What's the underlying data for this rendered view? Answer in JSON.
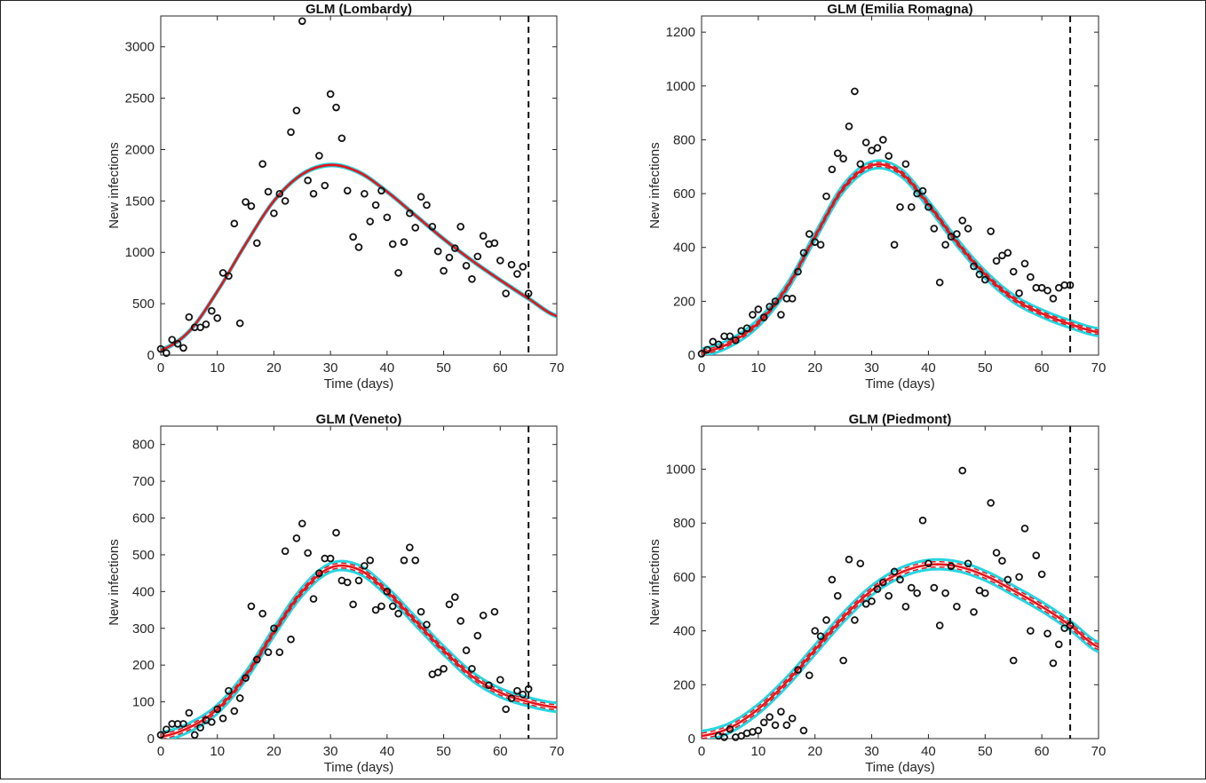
{
  "colors": {
    "fit": "#e8131b",
    "band": "#24d6e0",
    "points": "#111111",
    "cutoff": "#111111"
  },
  "chart_data": [
    {
      "type": "scatter",
      "title": "GLM (Lombardy)",
      "xlabel": "Time (days)",
      "ylabel": "New infections",
      "xlim": [
        0,
        70
      ],
      "ylim": [
        0,
        3300
      ],
      "xticks": [
        0,
        10,
        20,
        30,
        40,
        50,
        60,
        70
      ],
      "yticks": [
        0,
        500,
        1000,
        1500,
        2000,
        2500,
        3000
      ],
      "cutoff_x": 65,
      "fit": {
        "x": [
          0,
          5,
          10,
          15,
          20,
          25,
          30,
          35,
          40,
          45,
          50,
          55,
          60,
          65,
          70
        ],
        "y": [
          50,
          230,
          620,
          1080,
          1500,
          1760,
          1850,
          1780,
          1590,
          1360,
          1130,
          920,
          730,
          550,
          380
        ]
      },
      "band_halfwidth": 10,
      "observed": {
        "x": [
          0,
          1,
          2,
          3,
          4,
          5,
          6,
          7,
          8,
          9,
          10,
          11,
          12,
          13,
          14,
          15,
          16,
          17,
          18,
          19,
          20,
          21,
          22,
          23,
          24,
          25,
          26,
          27,
          28,
          29,
          30,
          31,
          32,
          33,
          34,
          35,
          36,
          37,
          38,
          39,
          40,
          41,
          42,
          43,
          44,
          45,
          46,
          47,
          48,
          49,
          50,
          51,
          52,
          53,
          54,
          55,
          56,
          57,
          58,
          59,
          60,
          61,
          62,
          63,
          64,
          65
        ],
        "y": [
          60,
          20,
          150,
          110,
          70,
          370,
          270,
          270,
          300,
          430,
          360,
          800,
          770,
          1280,
          310,
          1490,
          1450,
          1090,
          1860,
          1590,
          1380,
          1570,
          1500,
          2170,
          2380,
          3250,
          1700,
          1570,
          1940,
          1650,
          2540,
          2410,
          2110,
          1600,
          1150,
          1050,
          1570,
          1300,
          1460,
          1600,
          1340,
          1080,
          800,
          1100,
          1380,
          1240,
          1540,
          1460,
          1250,
          1010,
          820,
          950,
          1040,
          1250,
          870,
          740,
          960,
          1160,
          1080,
          1090,
          920,
          600,
          880,
          790,
          860,
          600
        ]
      }
    },
    {
      "type": "scatter",
      "title": "GLM (Emilia Romagna)",
      "xlabel": "Time (days)",
      "ylabel": "New infections",
      "xlim": [
        0,
        70
      ],
      "ylim": [
        0,
        1260
      ],
      "xticks": [
        0,
        10,
        20,
        30,
        40,
        50,
        60,
        70
      ],
      "yticks": [
        0,
        200,
        400,
        600,
        800,
        1000,
        1200
      ],
      "cutoff_x": 65,
      "fit": {
        "x": [
          0,
          5,
          10,
          15,
          20,
          25,
          30,
          35,
          40,
          45,
          50,
          55,
          60,
          65,
          70
        ],
        "y": [
          10,
          45,
          120,
          250,
          440,
          620,
          705,
          680,
          560,
          420,
          300,
          210,
          155,
          115,
          85
        ]
      },
      "band_halfwidth": 14,
      "observed": {
        "x": [
          0,
          1,
          2,
          3,
          4,
          5,
          6,
          7,
          8,
          9,
          10,
          11,
          12,
          13,
          14,
          15,
          16,
          17,
          18,
          19,
          20,
          21,
          22,
          23,
          24,
          25,
          26,
          27,
          28,
          29,
          30,
          31,
          32,
          33,
          34,
          35,
          36,
          37,
          38,
          39,
          40,
          41,
          42,
          43,
          44,
          45,
          46,
          47,
          48,
          49,
          50,
          51,
          52,
          53,
          54,
          55,
          56,
          57,
          58,
          59,
          60,
          61,
          62,
          63,
          64,
          65
        ],
        "y": [
          5,
          20,
          50,
          40,
          70,
          70,
          55,
          90,
          100,
          150,
          170,
          140,
          180,
          200,
          150,
          210,
          210,
          310,
          380,
          450,
          420,
          410,
          590,
          690,
          750,
          730,
          850,
          980,
          710,
          790,
          760,
          770,
          800,
          740,
          410,
          550,
          710,
          550,
          600,
          610,
          550,
          470,
          270,
          410,
          440,
          450,
          500,
          470,
          330,
          300,
          280,
          460,
          350,
          370,
          380,
          310,
          230,
          340,
          290,
          250,
          250,
          240,
          210,
          250,
          260,
          260
        ]
      }
    },
    {
      "type": "scatter",
      "title": "GLM (Veneto)",
      "xlabel": "Time (days)",
      "ylabel": "New infections",
      "xlim": [
        0,
        70
      ],
      "ylim": [
        0,
        850
      ],
      "xticks": [
        0,
        10,
        20,
        30,
        40,
        50,
        60,
        70
      ],
      "yticks": [
        0,
        100,
        200,
        300,
        400,
        500,
        600,
        700,
        800
      ],
      "cutoff_x": 65,
      "fit": {
        "x": [
          0,
          5,
          10,
          15,
          20,
          25,
          30,
          35,
          40,
          45,
          50,
          55,
          60,
          65,
          70
        ],
        "y": [
          5,
          30,
          80,
          170,
          290,
          400,
          465,
          460,
          400,
          320,
          240,
          170,
          125,
          100,
          85
        ]
      },
      "band_halfwidth": 12,
      "observed": {
        "x": [
          0,
          1,
          2,
          3,
          4,
          5,
          6,
          7,
          8,
          9,
          10,
          11,
          12,
          13,
          14,
          15,
          16,
          17,
          18,
          19,
          20,
          21,
          22,
          23,
          24,
          25,
          26,
          27,
          28,
          29,
          30,
          31,
          32,
          33,
          34,
          35,
          36,
          37,
          38,
          39,
          40,
          41,
          42,
          43,
          44,
          45,
          46,
          47,
          48,
          49,
          50,
          51,
          52,
          53,
          54,
          55,
          56,
          57,
          58,
          59,
          60,
          61,
          62,
          63,
          64,
          65
        ],
        "y": [
          10,
          25,
          40,
          40,
          40,
          70,
          10,
          30,
          50,
          45,
          80,
          55,
          130,
          75,
          110,
          165,
          360,
          215,
          340,
          235,
          300,
          235,
          510,
          270,
          545,
          585,
          505,
          380,
          450,
          490,
          490,
          560,
          430,
          425,
          365,
          430,
          470,
          485,
          350,
          360,
          400,
          360,
          340,
          485,
          520,
          485,
          345,
          310,
          175,
          180,
          190,
          365,
          385,
          320,
          240,
          190,
          280,
          335,
          145,
          345,
          160,
          80,
          110,
          130,
          120,
          135
        ]
      }
    },
    {
      "type": "scatter",
      "title": "GLM (Piedmont)",
      "xlabel": "Time (days)",
      "ylabel": "New infections",
      "xlim": [
        0,
        70
      ],
      "ylim": [
        0,
        1160
      ],
      "xticks": [
        0,
        10,
        20,
        30,
        40,
        50,
        60,
        70
      ],
      "yticks": [
        0,
        200,
        400,
        600,
        800,
        1000
      ],
      "cutoff_x": 65,
      "fit": {
        "x": [
          0,
          5,
          10,
          15,
          20,
          25,
          30,
          35,
          40,
          45,
          50,
          55,
          60,
          65,
          70
        ],
        "y": [
          10,
          40,
          110,
          210,
          330,
          450,
          550,
          615,
          645,
          640,
          605,
          550,
          490,
          420,
          340
        ]
      },
      "band_halfwidth": 18,
      "observed": {
        "x": [
          3,
          4,
          5,
          6,
          7,
          8,
          9,
          10,
          11,
          12,
          13,
          14,
          15,
          16,
          17,
          18,
          19,
          20,
          21,
          22,
          23,
          24,
          25,
          26,
          27,
          28,
          29,
          30,
          31,
          32,
          33,
          34,
          35,
          36,
          37,
          38,
          39,
          40,
          41,
          42,
          43,
          44,
          45,
          46,
          47,
          48,
          49,
          50,
          51,
          52,
          53,
          54,
          55,
          56,
          57,
          58,
          59,
          60,
          61,
          62,
          63,
          64,
          65
        ],
        "y": [
          10,
          5,
          35,
          5,
          10,
          20,
          25,
          30,
          60,
          80,
          50,
          100,
          50,
          75,
          255,
          30,
          235,
          400,
          380,
          440,
          590,
          530,
          290,
          665,
          440,
          650,
          500,
          510,
          555,
          580,
          530,
          620,
          590,
          490,
          560,
          540,
          810,
          650,
          560,
          420,
          540,
          640,
          490,
          995,
          650,
          470,
          550,
          540,
          875,
          690,
          660,
          590,
          290,
          600,
          780,
          400,
          680,
          610,
          390,
          280,
          350,
          410,
          420
        ]
      }
    }
  ]
}
